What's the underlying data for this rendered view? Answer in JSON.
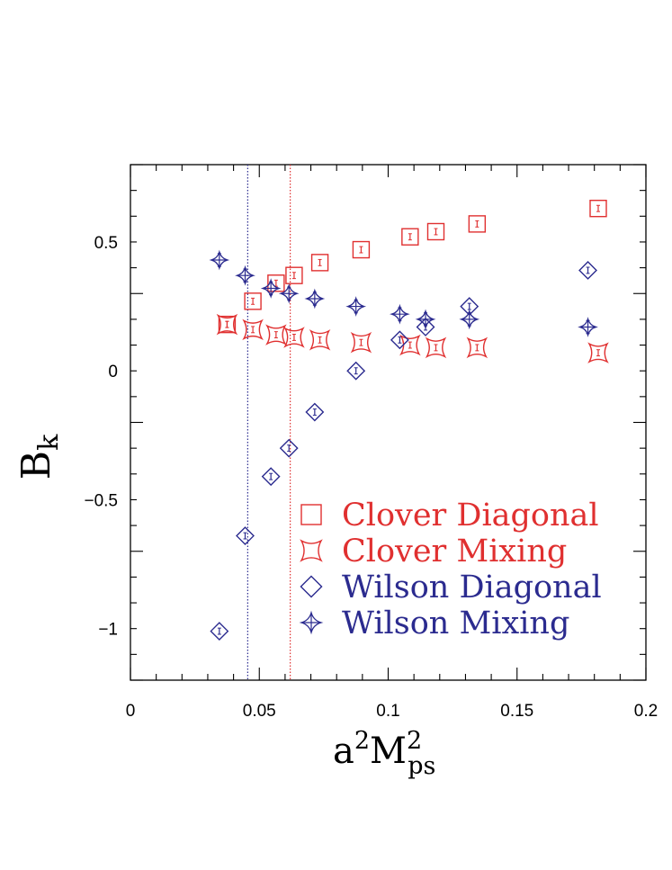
{
  "chart_data": {
    "type": "scatter",
    "xlabel": {
      "base": "a",
      "sup1": "2",
      "mid": "M",
      "sup2": "2",
      "sub": "ps"
    },
    "ylabel": {
      "base": "B",
      "sub": "k"
    },
    "xlim": [
      0,
      0.2
    ],
    "ylim": [
      -1.2,
      0.8
    ],
    "x_ticks": [
      {
        "v": 0,
        "label": "0"
      },
      {
        "v": 0.05,
        "label": "0.05"
      },
      {
        "v": 0.1,
        "label": "0.1"
      },
      {
        "v": 0.15,
        "label": "0.15"
      },
      {
        "v": 0.2,
        "label": "0.2"
      }
    ],
    "y_ticks": [
      {
        "v": 0.5,
        "label": "0.5"
      },
      {
        "v": 0,
        "label": "0"
      },
      {
        "v": -0.5,
        "label": "−0.5"
      },
      {
        "v": -1,
        "label": "−1"
      }
    ],
    "grid": false,
    "legend_position": "bottom-right",
    "vertical_lines": [
      {
        "x": 0.0455,
        "color": "#2b2b8f"
      },
      {
        "x": 0.062,
        "color": "#e03030"
      }
    ],
    "series": [
      {
        "name": "Clover Diagonal",
        "marker": "square",
        "color": "#e03030",
        "points": [
          {
            "x": 0.0375,
            "y": 0.18,
            "err": 0.012
          },
          {
            "x": 0.0475,
            "y": 0.27,
            "err": 0.012
          },
          {
            "x": 0.0565,
            "y": 0.34,
            "err": 0.012
          },
          {
            "x": 0.0635,
            "y": 0.37,
            "err": 0.012
          },
          {
            "x": 0.0735,
            "y": 0.42,
            "err": 0.012
          },
          {
            "x": 0.0895,
            "y": 0.47,
            "err": 0.012
          },
          {
            "x": 0.1085,
            "y": 0.52,
            "err": 0.012
          },
          {
            "x": 0.1185,
            "y": 0.54,
            "err": 0.012
          },
          {
            "x": 0.1345,
            "y": 0.57,
            "err": 0.012
          },
          {
            "x": 0.1815,
            "y": 0.63,
            "err": 0.012
          }
        ]
      },
      {
        "name": "Clover Mixing",
        "marker": "concave-square",
        "color": "#e03030",
        "points": [
          {
            "x": 0.0375,
            "y": 0.18,
            "err": 0.012
          },
          {
            "x": 0.0475,
            "y": 0.16,
            "err": 0.012
          },
          {
            "x": 0.0565,
            "y": 0.14,
            "err": 0.012
          },
          {
            "x": 0.0635,
            "y": 0.13,
            "err": 0.012
          },
          {
            "x": 0.0735,
            "y": 0.12,
            "err": 0.012
          },
          {
            "x": 0.0895,
            "y": 0.11,
            "err": 0.012
          },
          {
            "x": 0.1085,
            "y": 0.1,
            "err": 0.012
          },
          {
            "x": 0.1185,
            "y": 0.09,
            "err": 0.012
          },
          {
            "x": 0.1345,
            "y": 0.09,
            "err": 0.012
          },
          {
            "x": 0.1815,
            "y": 0.07,
            "err": 0.012
          }
        ]
      },
      {
        "name": "Wilson Diagonal",
        "marker": "diamond",
        "color": "#2b2b8f",
        "points": [
          {
            "x": 0.0345,
            "y": -1.01,
            "err": 0.012
          },
          {
            "x": 0.0445,
            "y": -0.64,
            "err": 0.012
          },
          {
            "x": 0.0545,
            "y": -0.41,
            "err": 0.012
          },
          {
            "x": 0.0615,
            "y": -0.3,
            "err": 0.012
          },
          {
            "x": 0.0715,
            "y": -0.16,
            "err": 0.012
          },
          {
            "x": 0.0875,
            "y": 0.0,
            "err": 0.012
          },
          {
            "x": 0.1045,
            "y": 0.12,
            "err": 0.012
          },
          {
            "x": 0.1145,
            "y": 0.17,
            "err": 0.012
          },
          {
            "x": 0.1315,
            "y": 0.25,
            "err": 0.012
          },
          {
            "x": 0.1775,
            "y": 0.39,
            "err": 0.012
          }
        ]
      },
      {
        "name": "Wilson Mixing",
        "marker": "star4",
        "color": "#2b2b8f",
        "points": [
          {
            "x": 0.0345,
            "y": 0.43,
            "err": 0.025
          },
          {
            "x": 0.0445,
            "y": 0.37,
            "err": 0.025
          },
          {
            "x": 0.0545,
            "y": 0.32,
            "err": 0.025
          },
          {
            "x": 0.0615,
            "y": 0.3,
            "err": 0.025
          },
          {
            "x": 0.0715,
            "y": 0.28,
            "err": 0.025
          },
          {
            "x": 0.0875,
            "y": 0.25,
            "err": 0.025
          },
          {
            "x": 0.1045,
            "y": 0.22,
            "err": 0.025
          },
          {
            "x": 0.1145,
            "y": 0.2,
            "err": 0.025
          },
          {
            "x": 0.1315,
            "y": 0.2,
            "err": 0.025
          },
          {
            "x": 0.1775,
            "y": 0.17,
            "err": 0.025
          }
        ]
      }
    ]
  }
}
